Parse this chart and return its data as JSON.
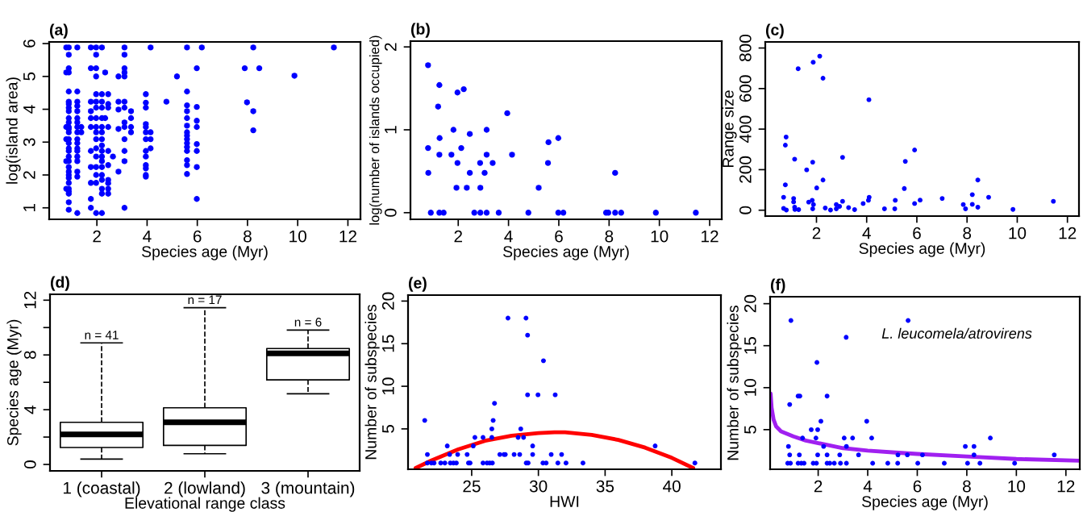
{
  "chart_data": [
    {
      "type": "scatter",
      "title": "(a)",
      "xlabel": "Species age (Myr)",
      "ylabel": "log(island area)",
      "xlim": [
        0.1,
        12.5
      ],
      "ylim": [
        0.65,
        6.05
      ],
      "xticks": [
        2,
        4,
        6,
        8,
        10,
        12
      ],
      "yticks": [
        1,
        2,
        3,
        4,
        5,
        6
      ],
      "grid": false,
      "marker": "circle",
      "series": [
        {
          "type": "scatter",
          "color": "#0000ff",
          "x": [
            0.78,
            0.78,
            0.78,
            0.78,
            0.78,
            0.78,
            0.88,
            0.88,
            0.88,
            0.88,
            0.88,
            0.88,
            0.88,
            0.88,
            0.88,
            0.88,
            0.88,
            0.88,
            0.88,
            0.88,
            0.88,
            0.88,
            0.88,
            0.88,
            0.88,
            0.88,
            0.88,
            0.88,
            0.88,
            0.88,
            0.88,
            0.88,
            0.88,
            0.88,
            0.88,
            0.88,
            1.22,
            1.22,
            1.22,
            1.22,
            1.22,
            1.22,
            1.22,
            1.22,
            1.22,
            1.22,
            1.22,
            1.22,
            1.22,
            1.22,
            1.22,
            1.22,
            1.22,
            1.22,
            1.38,
            1.38,
            1.76,
            1.76,
            1.76,
            1.76,
            1.76,
            1.76,
            1.76,
            1.76,
            1.76,
            1.76,
            1.76,
            1.97,
            1.97,
            1.97,
            1.97,
            1.97,
            1.97,
            1.97,
            1.97,
            1.97,
            1.97,
            1.97,
            1.97,
            1.97,
            1.97,
            1.97,
            1.97,
            1.97,
            2.2,
            2.2,
            2.2,
            2.2,
            2.2,
            2.2,
            2.2,
            2.2,
            2.2,
            2.2,
            2.2,
            2.2,
            2.2,
            2.2,
            2.2,
            2.2,
            2.2,
            2.2,
            2.33,
            2.33,
            2.45,
            2.45,
            2.45,
            2.45,
            2.45,
            2.45,
            2.45,
            2.45,
            2.45,
            2.45,
            2.64,
            2.86,
            2.86,
            2.86,
            2.86,
            2.86,
            3.1,
            3.1,
            3.1,
            3.1,
            3.1,
            3.1,
            3.1,
            3.1,
            3.1,
            3.1,
            3.1,
            3.1,
            3.1,
            3.36,
            3.36,
            3.36,
            3.36,
            3.95,
            3.95,
            3.95,
            3.95,
            3.95,
            3.95,
            3.95,
            3.95,
            3.95,
            3.95,
            3.95,
            3.95,
            3.95,
            4.14,
            4.14,
            4.14,
            4.14,
            4.77,
            5.19,
            5.59,
            5.59,
            5.59,
            5.59,
            5.59,
            5.59,
            5.59,
            5.59,
            5.59,
            5.59,
            5.59,
            5.59,
            5.59,
            5.59,
            5.59,
            5.98,
            5.98,
            5.98,
            5.98,
            5.98,
            5.98,
            5.98,
            5.98,
            6.18,
            7.89,
            7.98,
            8.23,
            8.23,
            8.23,
            8.47,
            9.87,
            11.44
          ],
          "values": [
            5.88,
            5.12,
            3.46,
            3.09,
            2.42,
            1.58,
            5.88,
            5.66,
            5.25,
            5.12,
            4.54,
            4.23,
            4.16,
            4.05,
            3.94,
            3.73,
            3.6,
            3.46,
            3.4,
            3.3,
            3.09,
            2.97,
            2.81,
            2.73,
            2.56,
            2.42,
            2.24,
            2.1,
            2.0,
            1.91,
            1.76,
            1.58,
            1.5,
            1.43,
            1.17,
            0.94,
            5.88,
            4.54,
            4.23,
            4.1,
            3.94,
            3.73,
            3.6,
            3.46,
            3.3,
            3.09,
            2.97,
            2.81,
            2.73,
            2.56,
            2.42,
            2.1,
            1.95,
            0.84,
            3.46,
            3.3,
            5.88,
            5.25,
            4.23,
            3.94,
            3.73,
            3.46,
            2.73,
            2.24,
            1.76,
            1.27,
            1.0,
            5.88,
            5.66,
            5.25,
            5.0,
            4.46,
            4.23,
            4.05,
            3.73,
            3.46,
            3.3,
            3.09,
            2.81,
            2.56,
            2.24,
            2.0,
            1.76,
            0.84,
            5.88,
            4.46,
            4.23,
            4.05,
            3.73,
            3.46,
            3.3,
            3.09,
            2.9,
            2.73,
            2.56,
            2.42,
            2.24,
            2.0,
            1.85,
            1.58,
            1.43,
            0.84,
            5.12,
            3.73,
            4.46,
            4.16,
            4.05,
            3.46,
            2.73,
            2.3,
            1.85,
            1.75,
            1.58,
            1.43,
            2.56,
            5.0,
            4.23,
            3.99,
            3.4,
            2.1,
            5.88,
            5.66,
            5.25,
            5.12,
            5.0,
            4.23,
            4.05,
            3.6,
            3.46,
            3.09,
            2.73,
            2.42,
            1.0,
            3.94,
            3.73,
            3.46,
            3.3,
            4.46,
            4.2,
            4.05,
            3.55,
            3.46,
            3.3,
            3.09,
            2.73,
            2.56,
            2.3,
            2.2,
            2.0,
            1.95,
            5.88,
            3.3,
            3.09,
            2.81,
            4.23,
            5.0,
            5.88,
            4.54,
            4.12,
            3.94,
            3.73,
            3.5,
            3.3,
            3.2,
            3.09,
            2.97,
            2.85,
            2.73,
            2.45,
            2.3,
            2.03,
            5.25,
            4.07,
            3.65,
            3.46,
            2.94,
            2.73,
            2.24,
            1.27,
            5.88,
            5.25,
            4.21,
            5.88,
            3.94,
            3.36,
            5.25,
            5.02,
            5.88
          ]
        }
      ]
    },
    {
      "type": "scatter",
      "title": "(b)",
      "xlabel": "Species age (Myr)",
      "ylabel": "log(number of islands occupied)",
      "xlim": [
        0.1,
        12.48
      ],
      "ylim": [
        -0.08,
        2.07
      ],
      "xticks": [
        2,
        4,
        6,
        8,
        10,
        12
      ],
      "yticks": [
        0,
        1,
        2
      ],
      "grid": false,
      "marker": "circle",
      "series": [
        {
          "type": "scatter",
          "color": "#0000ff",
          "x": [
            0.8,
            1.25,
            1.2,
            1.97,
            2.22,
            3.95,
            1.81,
            3.13,
            1.26,
            2.46,
            5.98,
            5.59,
            0.8,
            2.12,
            1.25,
            1.73,
            3.13,
            4.14,
            1.97,
            2.87,
            3.37,
            5.57,
            0.81,
            2.46,
            3.05,
            8.24,
            1.93,
            2.34,
            2.88,
            5.2,
            0.91,
            1.25,
            1.42,
            2.64,
            2.88,
            3.13,
            3.61,
            4.79,
            5.98,
            6.18,
            7.88,
            7.97,
            8.24,
            8.48,
            9.86,
            11.45
          ],
          "values": [
            1.78,
            1.54,
            1.28,
            1.45,
            1.49,
            1.2,
            1.0,
            1.0,
            0.9,
            0.95,
            0.9,
            0.85,
            0.78,
            0.78,
            0.7,
            0.7,
            0.7,
            0.7,
            0.6,
            0.6,
            0.6,
            0.6,
            0.48,
            0.48,
            0.48,
            0.48,
            0.3,
            0.3,
            0.3,
            0.3,
            0,
            0,
            0,
            0,
            0,
            0,
            0,
            0,
            0,
            0,
            0,
            0,
            0,
            0,
            0,
            0
          ]
        }
      ]
    },
    {
      "type": "scatter",
      "title": "(c)",
      "xlabel": "Species age (Myr)",
      "ylabel": "Range size",
      "xlim": [
        -0.04,
        12.46
      ],
      "ylim": [
        -29,
        830
      ],
      "xticks": [
        2,
        4,
        6,
        8,
        10,
        12
      ],
      "yticks": [
        0,
        200,
        400,
        600,
        800
      ],
      "grid": false,
      "marker": "circle",
      "series": [
        {
          "type": "scatter",
          "color": "#0000ff",
          "x": [
            2.13,
            1.87,
            1.27,
            2.26,
            4.09,
            0.79,
            0.76,
            5.91,
            3.04,
            1.13,
            5.54,
            1.85,
            1.61,
            2.26,
            8.43,
            0.76,
            2.01,
            5.5,
            8.21,
            0.69,
            1.09,
            7.01,
            8.86,
            4.1,
            4.07,
            6.13,
            5.14,
            11.44,
            3.04,
            1.83,
            1.69,
            1.09,
            1.88,
            3.86,
            5.91,
            7.85,
            8.21,
            2.79,
            2.92,
            3.28,
            2.35,
            1.13,
            8.43,
            0.69,
            1.85,
            2.79,
            1.14,
            1.29,
            0.8,
            2.56,
            3.52,
            4.71,
            5.12,
            7.94,
            9.83
          ],
          "values": [
            760,
            730,
            698,
            651,
            545,
            361,
            321,
            297,
            261,
            252,
            241,
            237,
            199,
            149,
            149,
            125,
            110,
            107,
            77,
            64,
            58,
            58,
            64,
            64,
            49,
            50,
            49,
            44,
            44,
            49,
            40,
            41,
            28,
            33,
            33,
            28,
            29,
            28,
            19,
            13,
            11,
            15,
            15,
            9,
            7,
            7,
            4,
            3,
            1,
            1,
            3,
            7,
            7,
            7,
            4
          ]
        }
      ]
    },
    {
      "type": "box",
      "title": "(d)",
      "xlabel": "Elevational range class",
      "ylabel": "Species age (Myr)",
      "categories": [
        "1 (coastal)",
        "2 (lowland)",
        "3 (mountain)"
      ],
      "ylim": [
        -0.47,
        12.43
      ],
      "yticks": [
        0,
        {
          "value": 2,
          "label": null
        },
        4,
        {
          "value": 6,
          "label": null
        },
        8,
        {
          "value": 10,
          "label": null
        },
        12
      ],
      "grid": false,
      "line_style": "dashed",
      "boxes": [
        {
          "low": 0.39,
          "q1": 1.24,
          "median": 2.2,
          "q3": 3.08,
          "high": 8.88
        },
        {
          "low": 0.78,
          "q1": 1.39,
          "median": 3.08,
          "q3": 4.14,
          "high": 11.45
        },
        {
          "low": 5.16,
          "q1": 6.18,
          "median": 8.12,
          "q3": 8.47,
          "high": 9.82
        }
      ],
      "annotations": [
        {
          "text": "n = 41",
          "x": "1 (coastal)",
          "y": 8.88
        },
        {
          "text": "n = 17",
          "x": "2 (lowland)",
          "y": 11.45
        },
        {
          "text": "n = 6",
          "x": "3 (mountain)",
          "y": 9.82
        }
      ]
    },
    {
      "type": "scatter",
      "title": "(e)",
      "xlabel": "HWI",
      "ylabel": "Number of subspecies",
      "xlim": [
        20.23,
        43.68
      ],
      "ylim": [
        0.26,
        20.7
      ],
      "xticks": [
        25,
        30,
        35,
        40
      ],
      "yticks": [
        5,
        10,
        15,
        20
      ],
      "grid": false,
      "marker": "circle",
      "series": [
        {
          "type": "scatter",
          "color": "#0000ff",
          "x": [
            21.48,
            21.68,
            21.68,
            21.98,
            22.18,
            22.68,
            22.99,
            23.17,
            23.35,
            23.4,
            23.63,
            23.85,
            23.95,
            24.66,
            24.76,
            24.88,
            25.12,
            25.24,
            25.85,
            25.85,
            26.15,
            26.35,
            26.55,
            26.51,
            26.51,
            26.61,
            26.71,
            27.11,
            27.42,
            27.52,
            27.72,
            28.18,
            28.48,
            28.68,
            28.6,
            28.89,
            29.07,
            29.19,
            29.19,
            29.09,
            29.23,
            29.57,
            29.57,
            29.97,
            30.38,
            30.34,
            30.58,
            30.96,
            31.26,
            31.46,
            31.74,
            32.07,
            33.34,
            38.75,
            41.73
          ],
          "values": [
            6,
            2,
            1,
            1,
            1,
            1,
            1,
            3,
            2,
            1,
            1,
            1,
            2,
            2,
            1,
            1,
            3,
            4,
            4,
            1,
            1,
            1,
            1,
            4,
            5,
            6,
            8,
            2,
            2,
            2,
            18,
            2,
            4,
            5,
            2,
            4,
            18,
            16,
            9,
            1,
            1,
            3,
            2,
            9,
            13,
            1,
            1,
            2,
            9,
            1,
            2,
            1,
            1,
            3,
            1
          ]
        },
        {
          "type": "line",
          "marker": "none",
          "color": "#ff0000",
          "x": [
            20.8,
            22,
            24,
            26,
            28,
            30,
            31.2,
            32,
            34,
            36,
            38,
            40,
            41.6
          ],
          "values": [
            0.4,
            1.3,
            2.6,
            3.6,
            4.2,
            4.5,
            4.6,
            4.6,
            4.3,
            3.7,
            2.8,
            1.6,
            0.4
          ]
        }
      ]
    },
    {
      "type": "scatter",
      "title": "(f)",
      "xlabel": "Species age (Myr)",
      "ylabel": "Number of subspecies",
      "xlim": [
        0.06,
        12.56
      ],
      "ylim": [
        0.28,
        20.83
      ],
      "xticks": [
        2,
        4,
        6,
        8,
        10,
        12
      ],
      "yticks": [
        5,
        10,
        15,
        20
      ],
      "grid": false,
      "marker": "circle",
      "annotations": [
        "L. leucomela/atrovirens"
      ],
      "series": [
        {
          "type": "scatter",
          "color": "#0000ff",
          "x": [
            0.9,
            0.85,
            0.8,
            0.85,
            0.77,
            0.88,
            1.19,
            1.26,
            1.24,
            1.19,
            1.32,
            1.43,
            1.37,
            1.72,
            1.8,
            1.91,
            1.95,
            1.98,
            1.98,
            1.93,
            2.11,
            2.22,
            2.36,
            2.36,
            2.36,
            2.47,
            2.65,
            2.87,
            2.9,
            3.05,
            3.13,
            3.14,
            3.14,
            3.39,
            3.63,
            3.96,
            4.16,
            4.2,
            4.81,
            5.22,
            5.21,
            5.6,
            5.63,
            6.02,
            6.21,
            7.09,
            7.94,
            8.03,
            8.29,
            8.29,
            8.53,
            8.95,
            9.93,
            11.53
          ],
          "values": [
            18,
            8,
            3,
            2,
            1,
            1,
            9,
            9,
            2,
            1,
            1,
            1,
            4,
            5,
            1,
            4,
            13,
            5,
            2,
            1,
            6,
            3,
            9,
            2,
            1,
            1,
            1,
            2,
            1,
            4,
            16,
            3,
            1,
            4,
            2,
            6,
            4,
            1,
            1,
            2,
            1,
            2,
            18,
            1,
            2,
            1,
            3,
            1,
            3,
            2,
            1,
            4,
            1,
            2
          ]
        },
        {
          "type": "line",
          "marker": "none",
          "color": "#a020f0",
          "x": [
            0.08,
            0.12,
            0.2,
            0.3,
            0.5,
            1,
            1.5,
            2,
            3,
            4,
            5,
            6,
            8,
            10,
            12.55
          ],
          "values": [
            9.3,
            7.6,
            6.2,
            5.4,
            4.8,
            4.2,
            3.7,
            3.4,
            2.8,
            2.5,
            2.3,
            2.1,
            1.8,
            1.5,
            1.3
          ]
        }
      ]
    }
  ]
}
